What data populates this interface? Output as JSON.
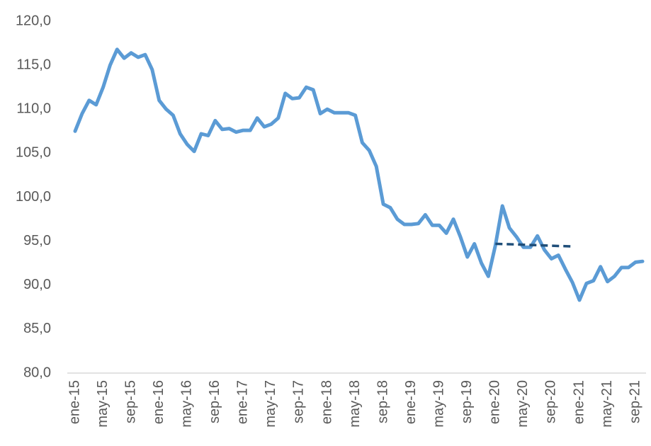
{
  "chart_data": {
    "type": "line",
    "categories": [
      "ene-15",
      null,
      null,
      null,
      "may-15",
      null,
      null,
      null,
      "sep-15",
      null,
      null,
      null,
      "ene-16",
      null,
      null,
      null,
      "may-16",
      null,
      null,
      null,
      "sep-16",
      null,
      null,
      null,
      "ene-17",
      null,
      null,
      null,
      "may-17",
      null,
      null,
      null,
      "sep-17",
      null,
      null,
      null,
      "ene-18",
      null,
      null,
      null,
      "may-18",
      null,
      null,
      null,
      "sep-18",
      null,
      null,
      null,
      "ene-19",
      null,
      null,
      null,
      "may-19",
      null,
      null,
      null,
      "sep-19",
      null,
      null,
      null,
      "ene-20",
      null,
      null,
      null,
      "may-20",
      null,
      null,
      null,
      "sep-20",
      null,
      null,
      null,
      "ene-21",
      null,
      null,
      null,
      "may-21",
      null,
      null,
      null,
      "sep-21",
      null
    ],
    "series": [
      {
        "color": "#5b9bd5",
        "dash": false,
        "values": [
          107.5,
          109.5,
          111.0,
          110.5,
          112.5,
          115.0,
          116.8,
          115.8,
          116.4,
          115.9,
          116.2,
          114.5,
          111.0,
          110.0,
          109.3,
          107.2,
          106.0,
          105.2,
          107.2,
          107.0,
          108.7,
          107.7,
          107.8,
          107.4,
          107.6,
          107.6,
          109.0,
          108.0,
          108.3,
          109.0,
          111.8,
          111.2,
          111.3,
          112.5,
          112.2,
          109.5,
          110.0,
          109.6,
          109.6,
          109.6,
          109.3,
          106.2,
          105.3,
          103.5,
          99.2,
          98.8,
          97.5,
          96.9,
          96.9,
          97.0,
          98.0,
          96.8,
          96.8,
          95.9,
          97.5,
          95.5,
          93.2,
          94.7,
          92.5,
          91.0,
          94.5,
          99.0,
          96.5,
          95.5,
          94.3,
          94.3,
          95.6,
          94.0,
          93.0,
          93.4,
          91.8,
          90.3,
          88.3,
          90.2,
          90.5,
          92.1,
          90.4,
          91.0,
          92.0,
          92.0,
          92.6,
          92.7
        ]
      },
      {
        "color": "#1f4e79",
        "dash": true,
        "values": [
          null,
          null,
          null,
          null,
          null,
          null,
          null,
          null,
          null,
          null,
          null,
          null,
          null,
          null,
          null,
          null,
          null,
          null,
          null,
          null,
          null,
          null,
          null,
          null,
          null,
          null,
          null,
          null,
          null,
          null,
          null,
          null,
          null,
          null,
          null,
          null,
          null,
          null,
          null,
          null,
          null,
          null,
          null,
          null,
          null,
          null,
          null,
          null,
          null,
          null,
          null,
          null,
          null,
          null,
          null,
          null,
          null,
          null,
          null,
          null,
          94.7,
          94.67,
          94.65,
          94.62,
          94.59,
          94.56,
          94.54,
          94.51,
          94.48,
          94.45,
          94.43,
          94.4,
          null,
          null,
          null,
          null,
          null,
          null,
          null,
          null,
          null,
          null
        ]
      }
    ],
    "ylim": [
      80,
      120
    ],
    "yticks": [
      {
        "value": 80,
        "label": "80,0"
      },
      {
        "value": 85,
        "label": "85,0"
      },
      {
        "value": 90,
        "label": "90,0"
      },
      {
        "value": 95,
        "label": "95,0"
      },
      {
        "value": 100,
        "label": "100,0"
      },
      {
        "value": 105,
        "label": "105,0"
      },
      {
        "value": 110,
        "label": "110,0"
      },
      {
        "value": 115,
        "label": "115,0"
      },
      {
        "value": 120,
        "label": "120,0"
      }
    ],
    "grid": false
  }
}
